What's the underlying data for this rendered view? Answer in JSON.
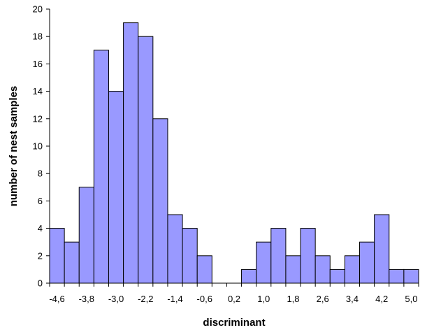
{
  "chart_data": {
    "type": "bar",
    "title": "",
    "xlabel": "discriminant",
    "ylabel": "number of nest samples",
    "ylim": [
      0,
      20
    ],
    "y_ticks": [
      "0",
      "2",
      "4",
      "6",
      "8",
      "10",
      "12",
      "14",
      "16",
      "18",
      "20"
    ],
    "x_tick_labels": [
      "-4,6",
      "-3,8",
      "-3,0",
      "-2,2",
      "-1,4",
      "-0,6",
      "0,2",
      "1,0",
      "1,8",
      "2,6",
      "3,4",
      "4,2",
      "5,0"
    ],
    "x": [
      -4.6,
      -4.2,
      -3.8,
      -3.4,
      -3.0,
      -2.6,
      -2.2,
      -1.8,
      -1.4,
      -1.0,
      -0.6,
      -0.2,
      0.2,
      0.6,
      1.0,
      1.4,
      1.8,
      2.2,
      2.6,
      3.0,
      3.4,
      3.8,
      4.2,
      4.6,
      5.0
    ],
    "values": [
      4,
      3,
      7,
      17,
      14,
      19,
      18,
      12,
      5,
      4,
      2,
      0,
      0,
      1,
      3,
      4,
      2,
      4,
      2,
      1,
      2,
      3,
      5,
      1,
      1
    ],
    "grid": false,
    "colors": {
      "bar_fill": "#9999ff",
      "bar_stroke": "#000000"
    }
  }
}
